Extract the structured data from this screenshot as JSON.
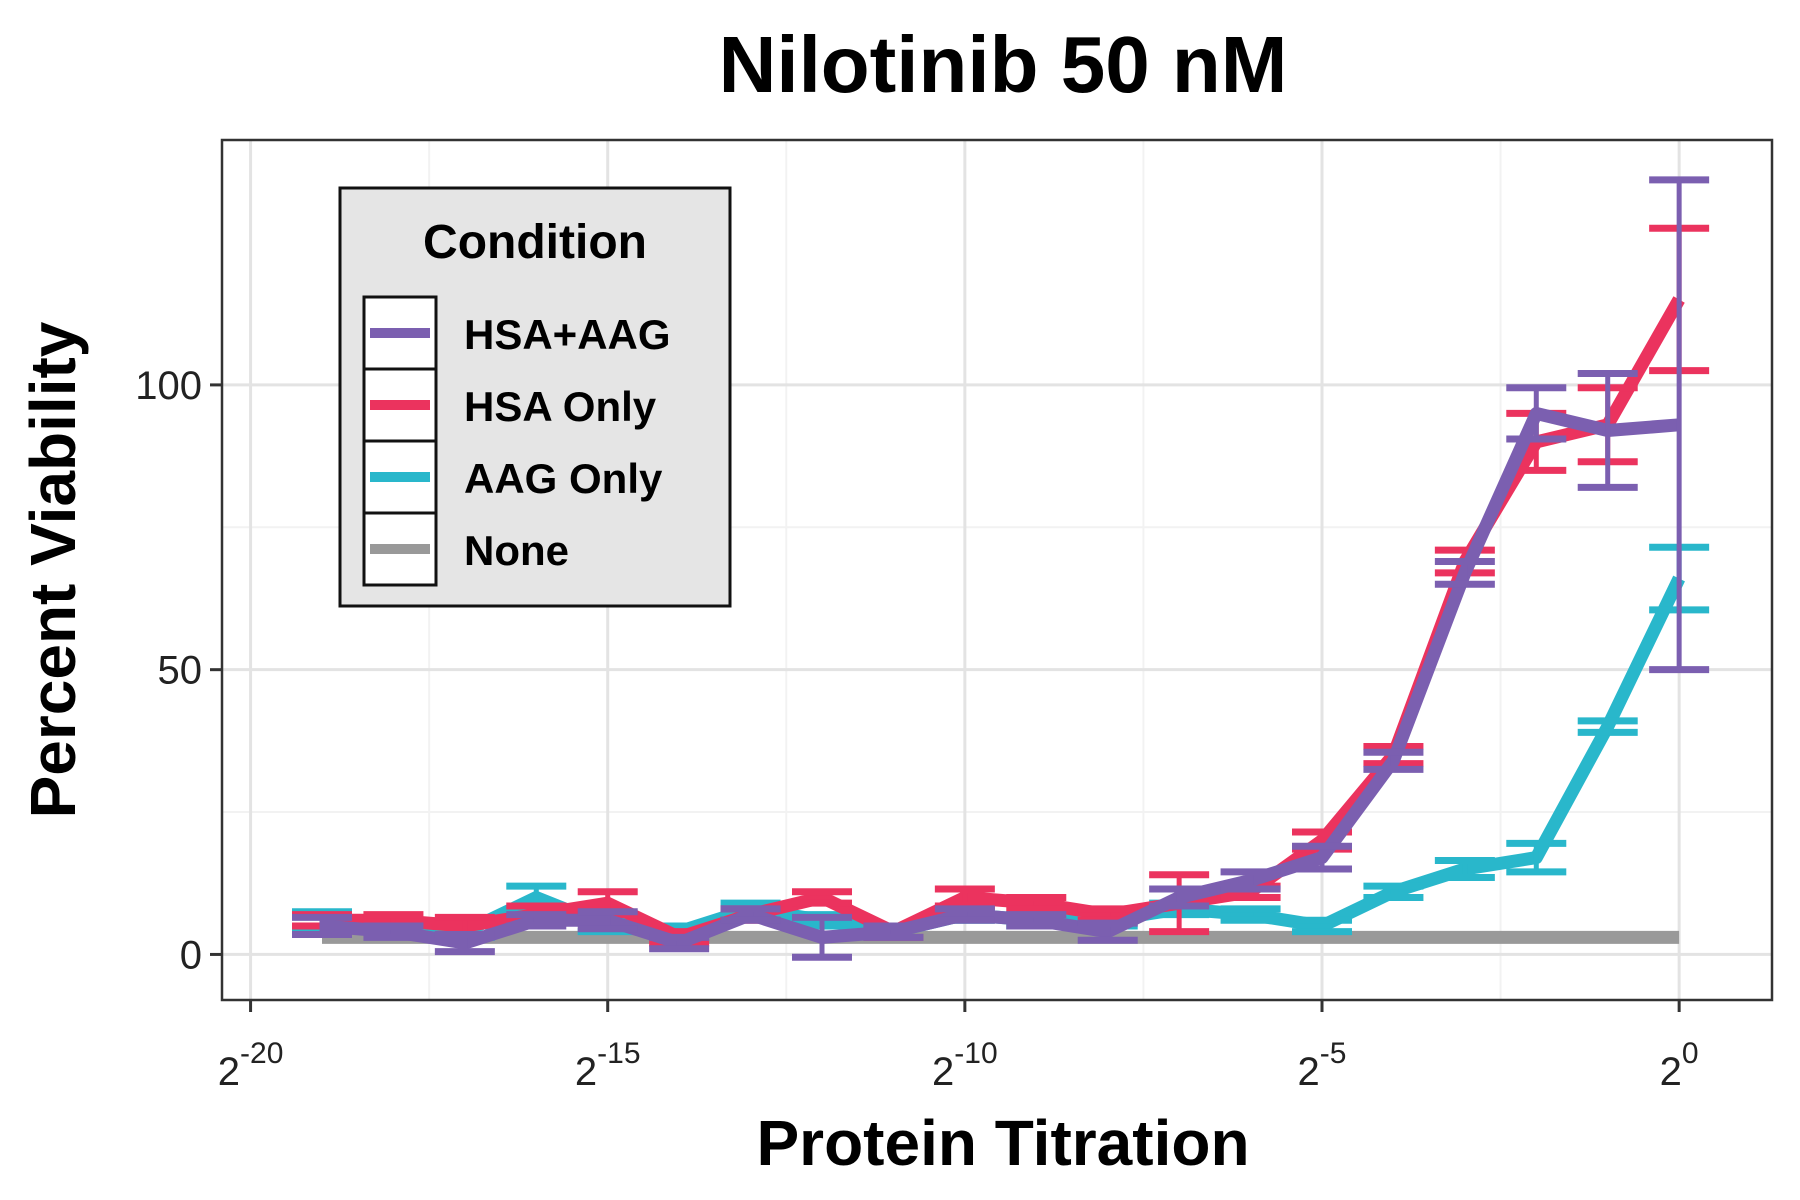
{
  "chart_data": {
    "type": "line",
    "title": "Nilotinib 50 nM",
    "xlabel": "Protein Titration",
    "ylabel": "Percent Viability",
    "x_scale": "log2",
    "x_tick_base": "2",
    "x_ticks": [
      {
        "exp": -20,
        "label": "-20"
      },
      {
        "exp": -15,
        "label": "-15"
      },
      {
        "exp": -10,
        "label": "-10"
      },
      {
        "exp": -5,
        "label": "-5"
      },
      {
        "exp": 0,
        "label": "0"
      }
    ],
    "y_ticks": [
      0,
      50,
      100
    ],
    "y_range": [
      -8,
      143
    ],
    "x_range_exp": [
      -20.4,
      1.3
    ],
    "grid": true,
    "legend": {
      "title": "Condition",
      "position": "top-left",
      "entries": [
        "HSA+AAG",
        "HSA Only",
        "AAG Only",
        "None"
      ]
    },
    "x_exp": [
      -19,
      -18,
      -17,
      -16,
      -15,
      -14,
      -13,
      -12,
      -11,
      -10,
      -9,
      -8,
      -7,
      -6,
      -5,
      -4,
      -3,
      -2,
      -1,
      0
    ],
    "series": [
      {
        "name": "HSA+AAG",
        "color": "#7B5FB0",
        "values": [
          5,
          4,
          2,
          6,
          6,
          2,
          7,
          3,
          4,
          7,
          6,
          4,
          10,
          13,
          17,
          34,
          67,
          95,
          92,
          93
        ],
        "err": [
          1.5,
          1,
          1.5,
          1,
          1.5,
          1,
          1,
          3.5,
          1,
          1,
          1,
          1.5,
          1.5,
          1.5,
          2,
          1.5,
          2,
          4.5,
          10,
          43
        ]
      },
      {
        "name": "HSA Only",
        "color": "#EB335E",
        "values": [
          6,
          6,
          5,
          7,
          9,
          3,
          7,
          10,
          4,
          10,
          9,
          7,
          9,
          11,
          20,
          35,
          69,
          90,
          93,
          115
        ],
        "err": [
          1,
          1,
          1.5,
          1.5,
          2,
          1,
          1,
          1,
          1,
          1.5,
          1,
          1,
          5,
          1,
          1.5,
          1.5,
          2,
          5,
          6.5,
          12.5
        ]
      },
      {
        "name": "AAG Only",
        "color": "#29B7CB",
        "values": [
          6,
          5,
          4,
          10,
          5,
          4,
          8,
          6,
          4,
          7,
          6,
          6,
          8,
          7,
          5,
          11,
          15,
          17,
          40,
          66
        ],
        "err": [
          1.5,
          1,
          1,
          2,
          1,
          1,
          1,
          1,
          1,
          1,
          1,
          1,
          1,
          1,
          1,
          1,
          1.5,
          2.5,
          1,
          5.5
        ]
      },
      {
        "name": "None",
        "color": "#999999",
        "values": [
          3,
          3,
          3,
          3,
          3,
          3,
          3,
          3,
          3,
          3,
          3,
          3,
          3,
          3,
          3,
          3,
          3,
          3,
          3,
          3
        ],
        "err": [
          0,
          0,
          0,
          0,
          0,
          0,
          0,
          0,
          0,
          0,
          0,
          0,
          0,
          0,
          0,
          0,
          0,
          0,
          0,
          0
        ]
      }
    ]
  }
}
